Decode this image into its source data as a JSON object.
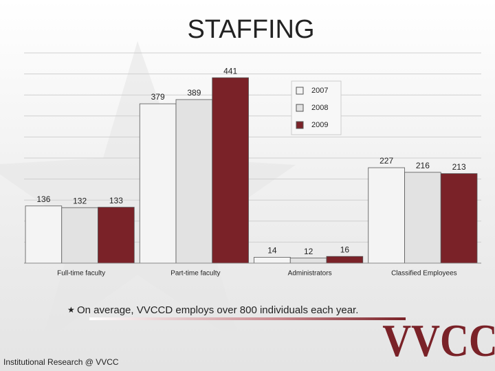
{
  "chart_data": {
    "type": "bar",
    "title": "STAFFING",
    "categories": [
      "Full-time faculty",
      "Part-time faculty",
      "Administrators",
      "Classified Employees"
    ],
    "series": [
      {
        "name": "2007",
        "color": "#f4f4f4",
        "values": [
          136,
          379,
          14,
          227
        ]
      },
      {
        "name": "2008",
        "color": "#e2e2e2",
        "values": [
          132,
          389,
          12,
          216
        ]
      },
      {
        "name": "2009",
        "color": "#7a2228",
        "values": [
          133,
          441,
          16,
          213
        ]
      }
    ],
    "ylim": [
      0,
      500
    ],
    "yticks": [
      0,
      50,
      100,
      150,
      200,
      250,
      300,
      350,
      400,
      450,
      500
    ],
    "grid": true
  },
  "slide": {
    "note": "On average, VVCCD employs over 800 individuals each year.",
    "footer": "Institutional Research @ VVCC",
    "logo": "VVCC"
  }
}
